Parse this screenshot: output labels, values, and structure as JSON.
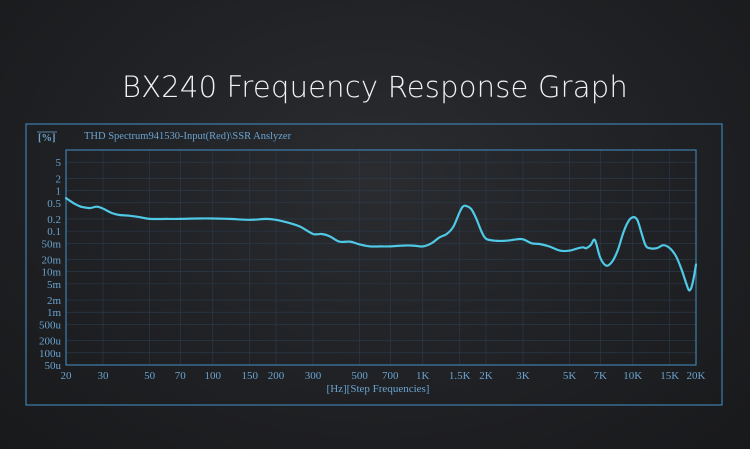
{
  "title": "BX240 Frequency Response Graph",
  "chart_data": {
    "type": "line",
    "header": "THD Spectrum941530-Input(Red)\\SSR Anslyzer",
    "ylabel": "[%]",
    "xlabel": "[Hz][Step Frequencies]",
    "x_scale": "log",
    "y_scale": "log",
    "xlim": [
      20,
      20000
    ],
    "ylim": [
      5e-05,
      10
    ],
    "grid": true,
    "x_ticks": [
      {
        "value": 20,
        "label": "20"
      },
      {
        "value": 30,
        "label": "30"
      },
      {
        "value": 50,
        "label": "50"
      },
      {
        "value": 70,
        "label": "70"
      },
      {
        "value": 100,
        "label": "100"
      },
      {
        "value": 150,
        "label": "150"
      },
      {
        "value": 200,
        "label": "200"
      },
      {
        "value": 300,
        "label": "300"
      },
      {
        "value": 500,
        "label": "500"
      },
      {
        "value": 700,
        "label": "700"
      },
      {
        "value": 1000,
        "label": "1K"
      },
      {
        "value": 1500,
        "label": "1.5K"
      },
      {
        "value": 2000,
        "label": "2K"
      },
      {
        "value": 3000,
        "label": "3K"
      },
      {
        "value": 5000,
        "label": "5K"
      },
      {
        "value": 7000,
        "label": "7K"
      },
      {
        "value": 10000,
        "label": "10K"
      },
      {
        "value": 15000,
        "label": "15K"
      },
      {
        "value": 20000,
        "label": "20K"
      }
    ],
    "y_ticks": [
      {
        "value": 5,
        "label": "5"
      },
      {
        "value": 2,
        "label": "2"
      },
      {
        "value": 1,
        "label": "1"
      },
      {
        "value": 0.5,
        "label": "0.5"
      },
      {
        "value": 0.2,
        "label": "0.2"
      },
      {
        "value": 0.1,
        "label": "0.1"
      },
      {
        "value": 0.05,
        "label": "50m"
      },
      {
        "value": 0.02,
        "label": "20m"
      },
      {
        "value": 0.01,
        "label": "10m"
      },
      {
        "value": 0.005,
        "label": "5m"
      },
      {
        "value": 0.002,
        "label": "2m"
      },
      {
        "value": 0.001,
        "label": "1m"
      },
      {
        "value": 0.0005,
        "label": "500u"
      },
      {
        "value": 0.0002,
        "label": "200u"
      },
      {
        "value": 0.0001,
        "label": "100u"
      },
      {
        "value": 5e-05,
        "label": "50u"
      }
    ],
    "series": [
      {
        "color": "#4fc9e6",
        "x": [
          20,
          21,
          22,
          23,
          24,
          26,
          28,
          30,
          33,
          36,
          40,
          45,
          50,
          60,
          70,
          85,
          100,
          120,
          150,
          180,
          200,
          230,
          260,
          300,
          330,
          360,
          400,
          450,
          500,
          560,
          630,
          700,
          800,
          900,
          1000,
          1100,
          1200,
          1300,
          1400,
          1500,
          1550,
          1600,
          1700,
          1800,
          1900,
          2000,
          2200,
          2500,
          2800,
          3000,
          3300,
          3600,
          4000,
          4500,
          5000,
          5500,
          5800,
          6000,
          6300,
          6600,
          7000,
          7500,
          8000,
          8500,
          9000,
          9500,
          10000,
          10500,
          11000,
          11500,
          12000,
          13000,
          14000,
          15000,
          16000,
          17000,
          18000,
          18500,
          19000,
          19500,
          20000
        ],
        "y": [
          0.65,
          0.55,
          0.47,
          0.42,
          0.39,
          0.37,
          0.4,
          0.36,
          0.28,
          0.25,
          0.24,
          0.22,
          0.2,
          0.2,
          0.2,
          0.205,
          0.205,
          0.2,
          0.19,
          0.2,
          0.19,
          0.16,
          0.13,
          0.085,
          0.085,
          0.075,
          0.055,
          0.055,
          0.047,
          0.042,
          0.042,
          0.042,
          0.044,
          0.044,
          0.042,
          0.05,
          0.07,
          0.085,
          0.13,
          0.3,
          0.4,
          0.42,
          0.35,
          0.2,
          0.1,
          0.065,
          0.058,
          0.058,
          0.063,
          0.063,
          0.05,
          0.048,
          0.042,
          0.033,
          0.033,
          0.038,
          0.04,
          0.038,
          0.045,
          0.06,
          0.022,
          0.014,
          0.018,
          0.035,
          0.09,
          0.17,
          0.22,
          0.19,
          0.09,
          0.045,
          0.038,
          0.038,
          0.045,
          0.038,
          0.025,
          0.012,
          0.005,
          0.0035,
          0.004,
          0.007,
          0.015
        ]
      }
    ]
  }
}
